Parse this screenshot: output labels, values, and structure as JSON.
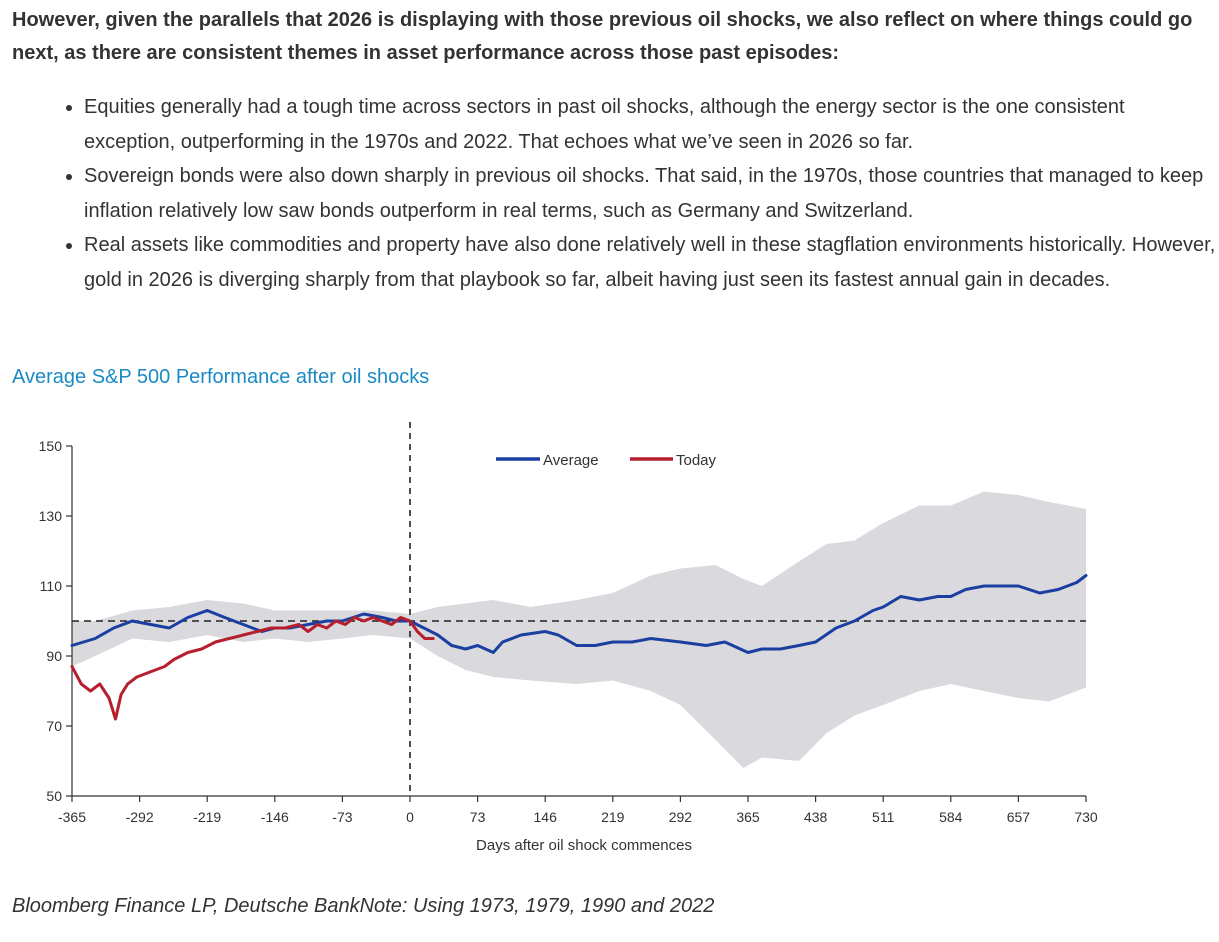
{
  "intro": "However, given the parallels that 2026 is displaying with those previous oil shocks, we also reflect on where things could go next, as there are consistent themes in asset performance across those past episodes:",
  "bullets": [
    "Equities generally had a tough time across sectors in past oil shocks, although the energy sector is the one consistent exception, outperforming in the 1970s and 2022. That echoes what we’ve seen in 2026 so far.",
    "Sovereign bonds were also down sharply in previous oil shocks. That said, in the 1970s, those countries that managed to keep inflation relatively low saw bonds outperform in real terms, such as Germany and Switzerland.",
    "Real assets like commodities and property have also done relatively well in these stagflation environments historically. However, gold in 2026 is diverging sharply from that playbook so far, albeit having just seen its fastest annual gain in decades."
  ],
  "source": "Bloomberg Finance LP, Deutsche BankNote: Using 1973, 1979, 1990 and 2022",
  "colors": {
    "title": "#1a8ac4",
    "average": "#1b3fa0",
    "today": "#b51f2e",
    "band": "#d9d9de"
  },
  "chart_data": {
    "type": "line",
    "title": "Average S&P 500 Performance after oil shocks",
    "xlabel": "Days after oil shock commences",
    "ylabel": "",
    "xlim": [
      -365,
      730
    ],
    "ylim": [
      50,
      150
    ],
    "x_ticks": [
      -365,
      -292,
      -219,
      -146,
      -73,
      0,
      73,
      146,
      219,
      292,
      365,
      438,
      511,
      584,
      657,
      730
    ],
    "y_ticks": [
      50,
      70,
      90,
      110,
      130,
      150
    ],
    "reference_line": 100,
    "event_line_x": 0,
    "legend": [
      "Average",
      "Today"
    ],
    "legend_position": "top-center",
    "series": [
      {
        "name": "Average",
        "x": [
          -365,
          -340,
          -320,
          -300,
          -280,
          -260,
          -240,
          -219,
          -200,
          -180,
          -160,
          -146,
          -130,
          -110,
          -90,
          -73,
          -50,
          -30,
          -15,
          0,
          15,
          30,
          45,
          60,
          73,
          90,
          100,
          110,
          120,
          146,
          160,
          180,
          200,
          219,
          240,
          260,
          292,
          320,
          340,
          365,
          380,
          400,
          420,
          438,
          460,
          480,
          500,
          511,
          530,
          550,
          570,
          584,
          600,
          620,
          640,
          657,
          680,
          700,
          720,
          730
        ],
        "values": [
          93,
          95,
          98,
          100,
          99,
          98,
          101,
          103,
          101,
          99,
          97,
          98,
          98,
          99,
          100,
          100,
          102,
          101,
          100,
          100,
          98,
          96,
          93,
          92,
          93,
          91,
          94,
          95,
          96,
          97,
          96,
          93,
          93,
          94,
          94,
          95,
          94,
          93,
          94,
          91,
          92,
          92,
          93,
          94,
          98,
          100,
          103,
          104,
          107,
          106,
          107,
          107,
          109,
          110,
          110,
          110,
          108,
          109,
          111,
          113
        ]
      },
      {
        "name": "Today",
        "x": [
          -365,
          -355,
          -345,
          -335,
          -325,
          -318,
          -312,
          -305,
          -295,
          -285,
          -275,
          -265,
          -255,
          -240,
          -225,
          -210,
          -195,
          -180,
          -165,
          -150,
          -135,
          -120,
          -110,
          -100,
          -90,
          -80,
          -70,
          -60,
          -50,
          -40,
          -30,
          -20,
          -10,
          0,
          8,
          16,
          25
        ],
        "values": [
          87,
          82,
          80,
          82,
          78,
          72,
          79,
          82,
          84,
          85,
          86,
          87,
          89,
          91,
          92,
          94,
          95,
          96,
          97,
          98,
          98,
          99,
          97,
          99,
          98,
          100,
          99,
          101,
          100,
          101,
          100,
          99,
          101,
          100,
          97,
          95,
          95
        ]
      }
    ],
    "band": {
      "name": "Range",
      "x": [
        -365,
        -340,
        -300,
        -260,
        -219,
        -180,
        -146,
        -110,
        -73,
        -40,
        0,
        30,
        60,
        90,
        130,
        180,
        219,
        260,
        292,
        330,
        360,
        380,
        420,
        450,
        480,
        511,
        550,
        584,
        620,
        657,
        690,
        730
      ],
      "upper": [
        100,
        100,
        103,
        104,
        106,
        105,
        103,
        103,
        103,
        103,
        102,
        104,
        105,
        106,
        104,
        106,
        108,
        113,
        115,
        116,
        112,
        110,
        117,
        122,
        123,
        128,
        133,
        133,
        137,
        136,
        134,
        132
      ],
      "lower": [
        87,
        90,
        95,
        94,
        96,
        94,
        95,
        94,
        95,
        96,
        95,
        90,
        86,
        84,
        83,
        82,
        83,
        80,
        76,
        66,
        58,
        61,
        60,
        68,
        73,
        76,
        80,
        82,
        80,
        78,
        77,
        81
      ]
    }
  }
}
